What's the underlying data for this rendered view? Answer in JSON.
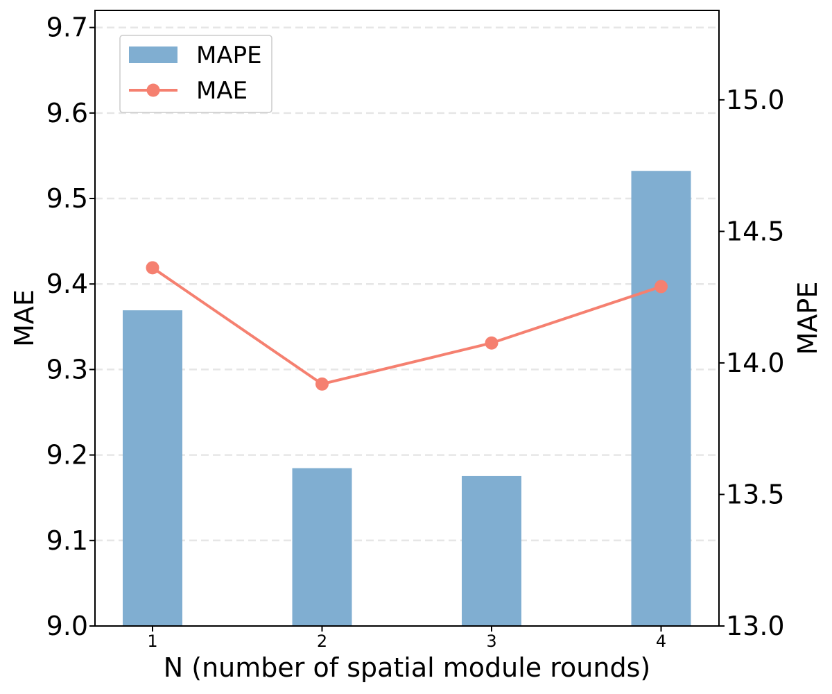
{
  "chart_data": {
    "type": "bar+line",
    "x_categories": [
      "1",
      "2",
      "3",
      "4"
    ],
    "xlabel": "N (number of spatial module rounds)",
    "left_axis": {
      "label": "MAE",
      "ylim": [
        9.0,
        9.72
      ],
      "ticks": [
        "9.0",
        "9.1",
        "9.2",
        "9.3",
        "9.4",
        "9.5",
        "9.6",
        "9.7"
      ]
    },
    "right_axis": {
      "label": "MAPE",
      "ylim": [
        13.0,
        15.34
      ],
      "ticks": [
        "13.0",
        "13.5",
        "14.0",
        "14.5",
        "15.0"
      ]
    },
    "series": [
      {
        "name": "MAPE",
        "kind": "bar",
        "axis": "right",
        "color": "#80aed1",
        "values": [
          14.2,
          13.6,
          13.57,
          14.73
        ]
      },
      {
        "name": "MAE",
        "kind": "line",
        "axis": "left",
        "color": "#f58070",
        "marker": "circle",
        "values": [
          9.419,
          9.283,
          9.331,
          9.397
        ]
      }
    ],
    "grid": "horizontal dashed, light gray",
    "legend": {
      "position": "top-left",
      "entries": [
        "MAPE",
        "MAE"
      ]
    }
  }
}
